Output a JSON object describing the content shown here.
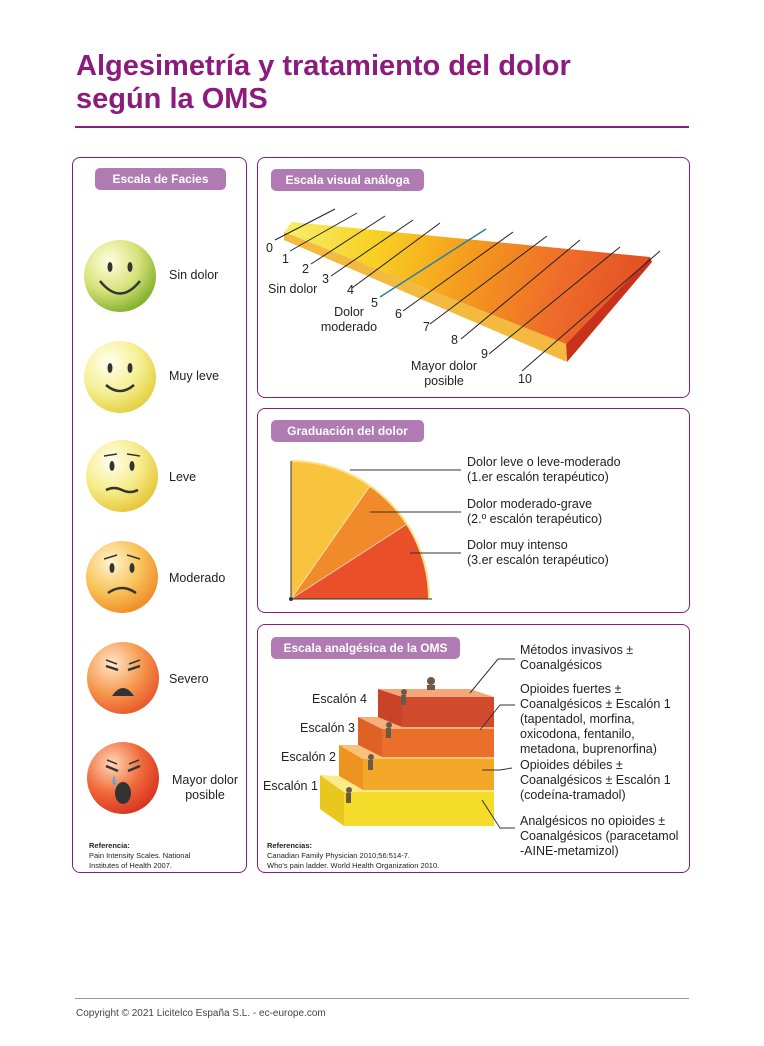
{
  "title_line1": "Algesimetría y tratamiento del dolor",
  "title_line2": "según la OMS",
  "facies": {
    "pill": "Escala de Facies",
    "faces": [
      {
        "label": "Sin dolor",
        "color": "#a8c83a"
      },
      {
        "label": "Muy leve",
        "color": "#f2e86a"
      },
      {
        "label": "Leve",
        "color": "#f3df5f"
      },
      {
        "label": "Moderado",
        "color": "#f6b23a"
      },
      {
        "label": "Severo",
        "color": "#f07f35"
      },
      {
        "label": "Mayor dolor posible",
        "color": "#ec4f2c"
      }
    ],
    "ref_title": "Referencia:",
    "ref_text": "Pain Intensity Scales. National Institutes of Health 2007."
  },
  "eva": {
    "pill": "Escala visual análoga",
    "numbers": [
      "0",
      "1",
      "2",
      "3",
      "4",
      "5",
      "6",
      "7",
      "8",
      "9",
      "10"
    ],
    "label_min": "Sin dolor",
    "label_mid": "Dolor moderado",
    "label_max": "Mayor dolor posible"
  },
  "graduacion": {
    "pill": "Graduación del dolor",
    "items": [
      {
        "line1": "Dolor leve o leve-moderado",
        "line2": "(1.er escalón terapéutico)",
        "color": "#f9c23a"
      },
      {
        "line1": "Dolor moderado-grave",
        "line2": "(2.º escalón terapéutico)",
        "color": "#f0852a"
      },
      {
        "line1": "Dolor muy intenso",
        "line2": "(3.er escalón terapéutico)",
        "color": "#e9502a"
      }
    ]
  },
  "oms": {
    "pill": "Escala analgésica de la OMS",
    "steps": [
      "Escalón 1",
      "Escalón 2",
      "Escalón 3",
      "Escalón 4"
    ],
    "desc": [
      {
        "lines": [
          "Métodos invasivos ±",
          "Coanalgésicos"
        ]
      },
      {
        "lines": [
          "Opioides fuertes ±",
          "Coanalgésicos ± Escalón 1",
          "(tapentadol, morfina,",
          "oxicodona, fentanilo,",
          "metadona, buprenorfina)"
        ]
      },
      {
        "lines": [
          "Opioides débiles ±",
          "Coanalgésicos ± Escalón 1",
          "(codeína-tramadol)"
        ]
      },
      {
        "lines": [
          "Analgésicos no opioides ±",
          "Coanalgésicos (paracetamol",
          "-AINE-metamizol)"
        ]
      }
    ],
    "ref_title": "Referencias:",
    "ref_line1": "Canadian Family Physician 2010;56:514-7.",
    "ref_line2": "Who's pain ladder. World Health Organization 2010."
  },
  "footer": "Copyright © 2021 Licitelco España S.L. - ec-europe.com"
}
